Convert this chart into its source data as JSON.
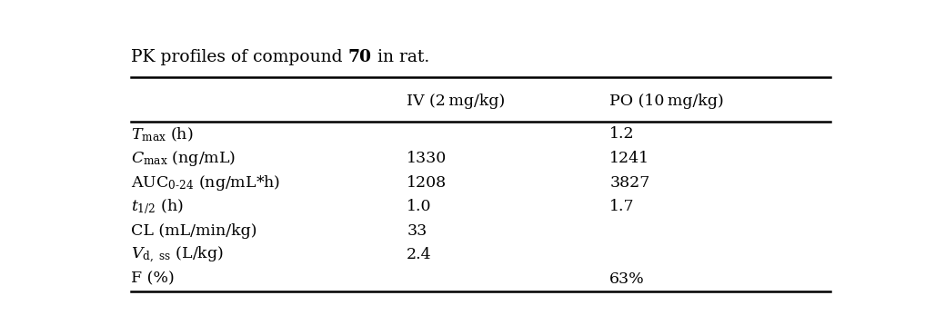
{
  "title_normal1": "PK profiles of compound ",
  "title_bold": "70",
  "title_normal2": " in rat.",
  "col_headers": [
    "IV (2 mg/kg)",
    "PO (10 mg/kg)"
  ],
  "rows": [
    {
      "label": "$T_{\\mathrm{max}}$ (h)",
      "iv": "",
      "po": "1.2"
    },
    {
      "label": "$C_{\\mathrm{max}}$ (ng/mL)",
      "iv": "1330",
      "po": "1241"
    },
    {
      "label": "$\\mathrm{AUC}_{0\\text{-}24}$ (ng/mL*h)",
      "iv": "1208",
      "po": "3827"
    },
    {
      "label": "$t_{1/2}$ (h)",
      "iv": "1.0",
      "po": "1.7"
    },
    {
      "label": "CL (mL/min/kg)",
      "iv": "33",
      "po": ""
    },
    {
      "label": "$V_{\\mathrm{d,\\ ss}}$ (L/kg)",
      "iv": "2.4",
      "po": ""
    },
    {
      "label": "F (%)",
      "iv": "",
      "po": "63%"
    }
  ],
  "background_color": "#ffffff",
  "text_color": "#000000",
  "line_color": "#000000",
  "fig_width": 10.28,
  "fig_height": 3.69,
  "dpi": 100
}
